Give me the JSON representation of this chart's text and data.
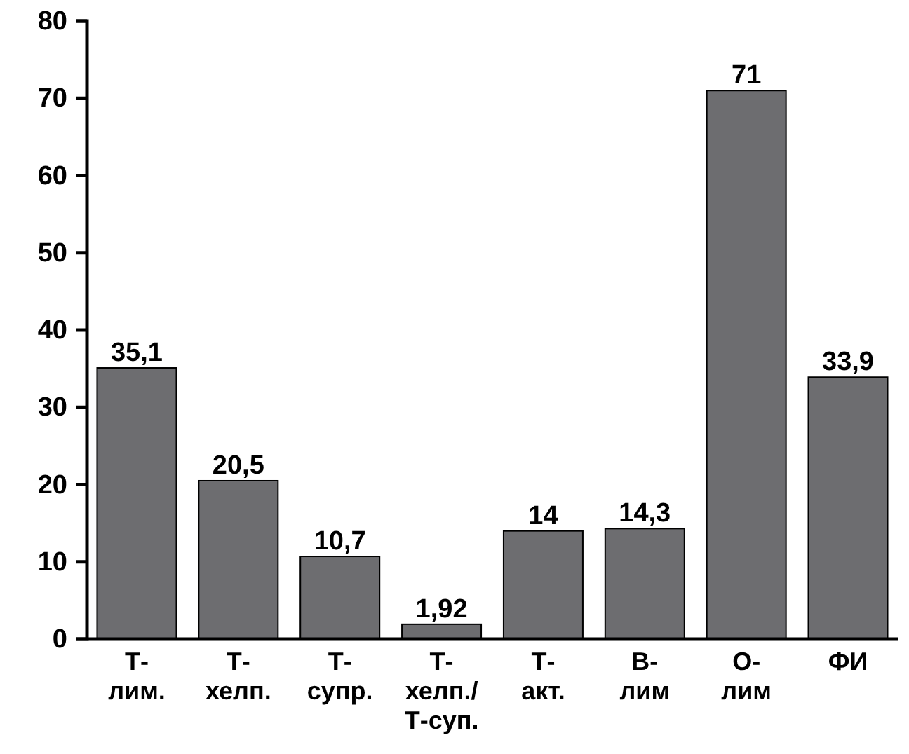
{
  "chart_data": {
    "type": "bar",
    "categories": [
      "Т-\nлим.",
      "Т-\nхелп.",
      "Т-\nсупр.",
      "Т-\nхелп./\nТ-суп.",
      "Т-\nакт.",
      "В-\nлим",
      "О-\nлим",
      "ФИ"
    ],
    "values": [
      35.1,
      20.5,
      10.7,
      1.92,
      14,
      14.3,
      71,
      33.9
    ],
    "value_labels": [
      "35,1",
      "20,5",
      "10,7",
      "1,92",
      "14",
      "14,3",
      "71",
      "33,9"
    ],
    "color": "#6d6d70",
    "ylim": [
      0,
      80
    ],
    "yticks": [
      0,
      10,
      20,
      30,
      40,
      50,
      60,
      70,
      80
    ],
    "grid": false
  }
}
